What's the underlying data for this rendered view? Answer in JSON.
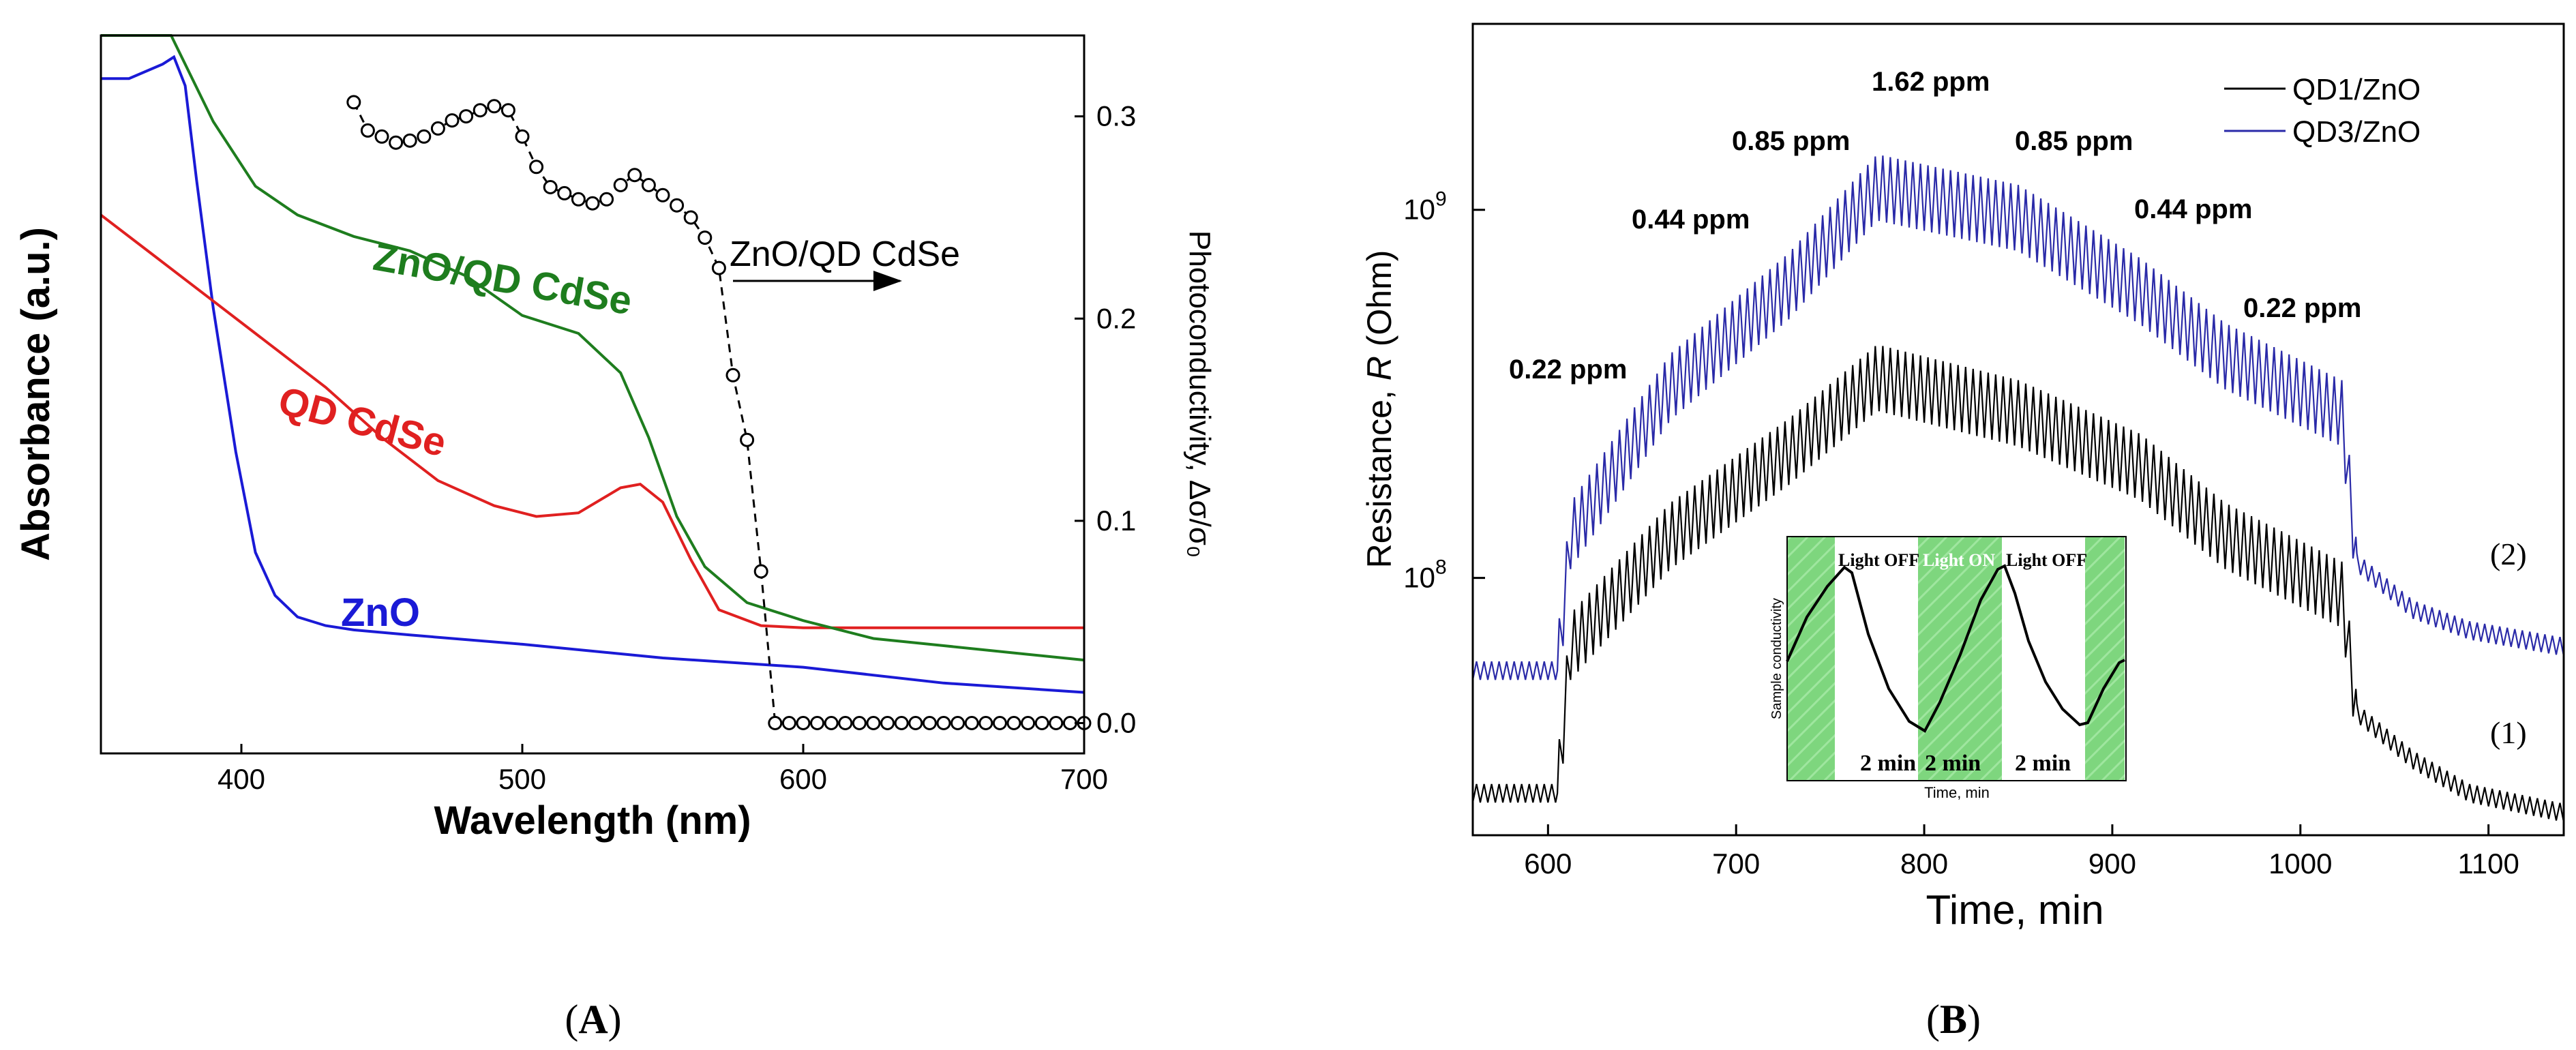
{
  "chart_data": [
    {
      "panel": "A",
      "type": "line",
      "panel_label_text": "A",
      "xlabel": "Wavelength (nm)",
      "ylabel": "Absorbance (a.u.)",
      "y2label": "Photoconductivity, Δσ/σ₀",
      "xlim": [
        350,
        700
      ],
      "x_ticks": [
        "400",
        "500",
        "600",
        "700"
      ],
      "y2lim": [
        -0.015,
        0.34
      ],
      "y2_ticks": [
        "0.0",
        "0.1",
        "0.2",
        "0.3"
      ],
      "ylim_arbitrary": [
        0,
        1
      ],
      "series": [
        {
          "name": "ZnO",
          "color": "#1a1ad6",
          "axis": "left",
          "x": [
            350,
            360,
            372,
            376,
            380,
            384,
            390,
            398,
            405,
            412,
            420,
            430,
            440,
            460,
            500,
            550,
            600,
            650,
            700
          ],
          "y": [
            0.94,
            0.94,
            0.96,
            0.97,
            0.93,
            0.8,
            0.62,
            0.42,
            0.28,
            0.22,
            0.19,
            0.178,
            0.172,
            0.165,
            0.152,
            0.133,
            0.12,
            0.098,
            0.085
          ]
        },
        {
          "name": "QD CdSe",
          "color": "#e02020",
          "axis": "left",
          "x": [
            350,
            370,
            390,
            410,
            430,
            450,
            470,
            490,
            505,
            520,
            535,
            542,
            550,
            560,
            570,
            585,
            600,
            650,
            700
          ],
          "y": [
            0.75,
            0.69,
            0.63,
            0.57,
            0.51,
            0.44,
            0.38,
            0.345,
            0.33,
            0.335,
            0.37,
            0.375,
            0.35,
            0.27,
            0.2,
            0.178,
            0.175,
            0.175,
            0.175
          ]
        },
        {
          "name": "ZnO/QD CdSe",
          "color": "#1e7d1e",
          "axis": "left",
          "x": [
            350,
            375,
            390,
            405,
            420,
            440,
            460,
            480,
            500,
            520,
            535,
            545,
            555,
            565,
            580,
            600,
            625,
            650,
            675,
            700
          ],
          "y": [
            1.0,
            1.0,
            0.88,
            0.79,
            0.75,
            0.72,
            0.7,
            0.665,
            0.61,
            0.585,
            0.53,
            0.44,
            0.33,
            0.26,
            0.21,
            0.185,
            0.16,
            0.15,
            0.14,
            0.13
          ]
        },
        {
          "name": "Photoconductivity",
          "style": "dashed-circles",
          "color": "#000000",
          "axis": "right",
          "x": [
            440,
            445,
            450,
            455,
            460,
            465,
            470,
            475,
            480,
            485,
            490,
            495,
            500,
            505,
            510,
            515,
            520,
            525,
            530,
            535,
            540,
            545,
            550,
            555,
            560,
            565,
            570,
            575,
            580,
            585,
            590,
            595,
            600,
            605,
            610,
            615,
            620,
            625,
            630,
            635,
            640,
            645,
            650,
            655,
            660,
            665,
            670,
            675,
            680,
            685,
            690,
            695,
            700
          ],
          "y": [
            0.307,
            0.293,
            0.29,
            0.287,
            0.288,
            0.29,
            0.294,
            0.298,
            0.3,
            0.303,
            0.305,
            0.303,
            0.29,
            0.275,
            0.265,
            0.262,
            0.259,
            0.257,
            0.259,
            0.266,
            0.271,
            0.266,
            0.261,
            0.256,
            0.25,
            0.24,
            0.225,
            0.172,
            0.14,
            0.075,
            0.0,
            0.0,
            0.0,
            0.0,
            0.0,
            0.0,
            0.0,
            0.0,
            0.0,
            0.0,
            0.0,
            0.0,
            0.0,
            0.0,
            0.0,
            0.0,
            0.0,
            0.0,
            0.0,
            0.0,
            0.0,
            0.0,
            0.0
          ]
        }
      ],
      "annotations": {
        "arrow_label": "ZnO/QD CdSe",
        "zno_label": "ZnO",
        "qd_label": "QD CdSe",
        "composite_label": "ZnO/QD CdSe"
      }
    },
    {
      "panel": "B",
      "type": "line",
      "panel_label_text": "B",
      "xlabel": "Time, min",
      "ylabel_prefix": "Resistance, ",
      "ylabel_var": "R",
      "ylabel_suffix": " (Ohm)",
      "xlim": [
        560,
        1140
      ],
      "x_ticks": [
        "600",
        "700",
        "800",
        "900",
        "1000",
        "1100"
      ],
      "yscale": "log",
      "ylim": [
        20000000.0,
        3200000000.0
      ],
      "y_tick_base": "10",
      "y_tick_exponents": [
        "8",
        "9"
      ],
      "legend": [
        "QD1/ZnO",
        "QD3/ZnO"
      ],
      "legend_position": "top-right",
      "curve_labels": [
        "(2)",
        "(1)"
      ],
      "concentration_labels": [
        "0.22 ppm",
        "0.44 ppm",
        "0.85 ppm",
        "1.62 ppm",
        "0.85 ppm",
        "0.44 ppm",
        "0.22 ppm"
      ],
      "series": [
        {
          "name": "QD1/ZnO",
          "color": "#000000",
          "steps_x": [
            560,
            605,
            612,
            665,
            728,
            775,
            850,
            915,
            960,
            1022,
            1030,
            1060,
            1090,
            1140
          ],
          "steps_y": [
            26000000.0,
            26000000.0,
            65000000.0,
            130000000.0,
            220000000.0,
            350000000.0,
            280000000.0,
            200000000.0,
            130000000.0,
            90000000.0,
            43000000.0,
            32000000.0,
            26000000.0,
            23000000.0
          ]
        },
        {
          "name": "QD3/ZnO",
          "color": "#2a2aa8",
          "steps_x": [
            560,
            605,
            612,
            665,
            728,
            775,
            850,
            915,
            960,
            1022,
            1030,
            1060,
            1090,
            1140
          ],
          "steps_y": [
            56000000.0,
            56000000.0,
            130000000.0,
            330000000.0,
            620000000.0,
            1150000000.0,
            950000000.0,
            600000000.0,
            400000000.0,
            280000000.0,
            110000000.0,
            82000000.0,
            72000000.0,
            65000000.0
          ]
        }
      ],
      "inset": {
        "xlabel": "Time, min",
        "ylabel": "Sample conductivity",
        "light_labels": [
          "Light OFF",
          "Light ON",
          "Light OFF"
        ],
        "duration_labels": [
          "2 min",
          "2 min",
          "2 min"
        ],
        "highlight_color": "#7ed67e"
      }
    }
  ],
  "captions": {
    "left": "A",
    "right": "B"
  }
}
